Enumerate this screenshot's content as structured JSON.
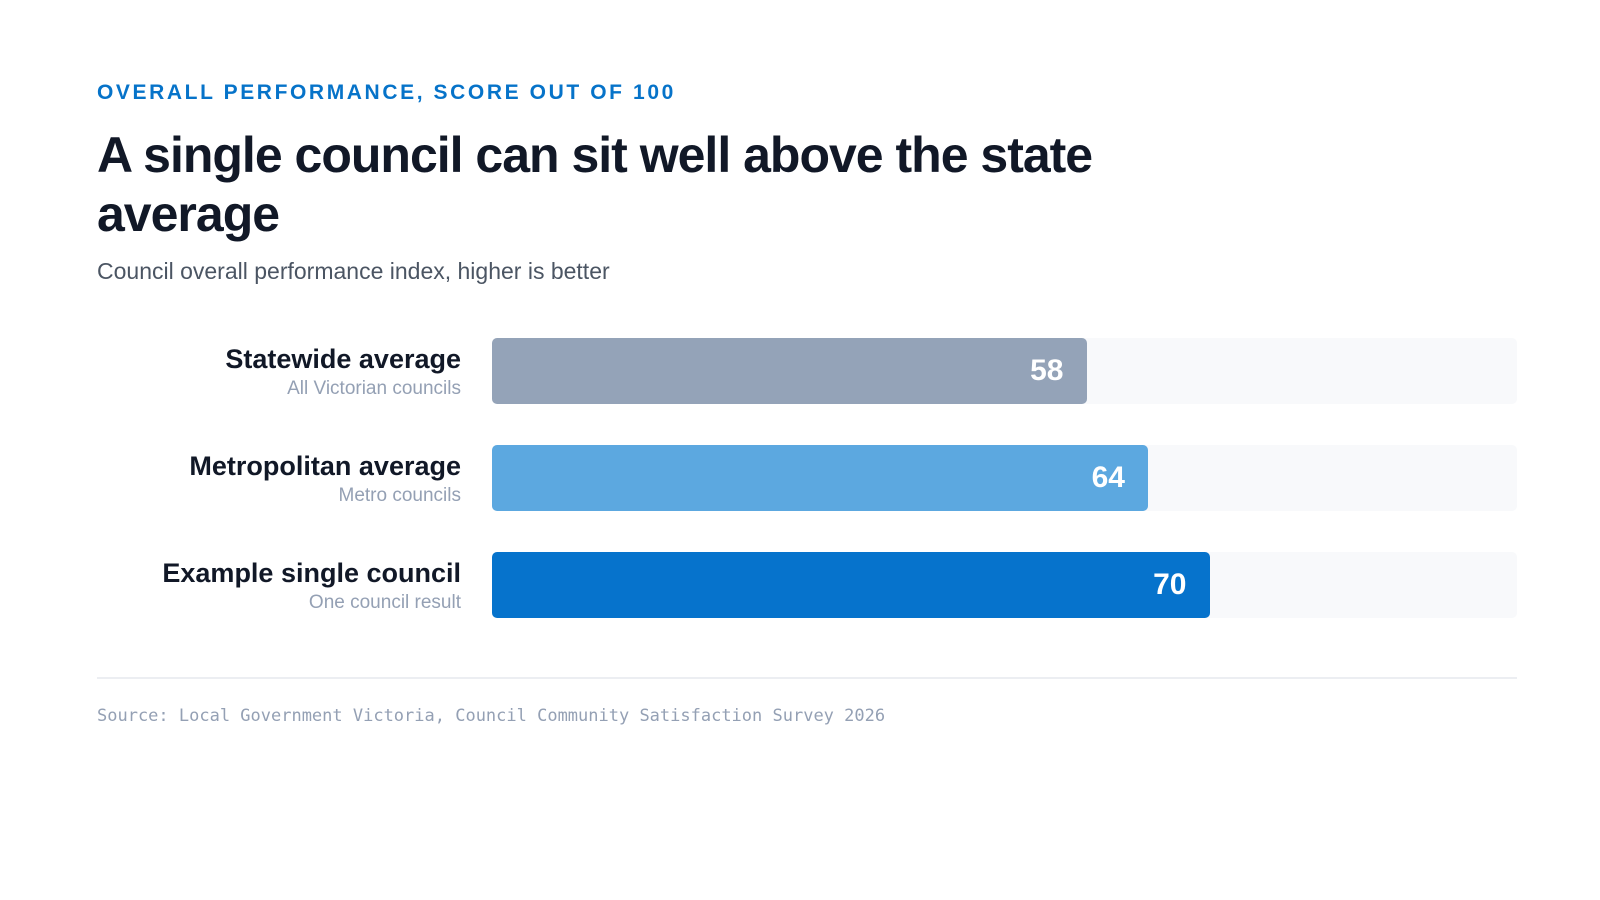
{
  "header": {
    "eyebrow": "OVERALL PERFORMANCE, SCORE OUT OF 100",
    "title": "A single council can sit well above the state average",
    "subtitle": "Council overall performance index, higher is better"
  },
  "rows": [
    {
      "name": "Statewide average",
      "description": "All Victorian councils",
      "value_label": "58",
      "color": "#94a3b8"
    },
    {
      "name": "Metropolitan average",
      "description": "Metro councils",
      "value_label": "64",
      "color": "#5ca8e0"
    },
    {
      "name": "Example single council",
      "description": "One council result",
      "value_label": "70",
      "color": "#0673cc"
    }
  ],
  "chart_data": {
    "type": "bar",
    "orientation": "horizontal",
    "title": "A single council can sit well above the state average",
    "subtitle": "Council overall performance index, higher is better",
    "categories": [
      "Statewide average",
      "Metropolitan average",
      "Example single council"
    ],
    "values": [
      58,
      64,
      70
    ],
    "xlim": [
      0,
      100
    ],
    "grid": false,
    "colors": [
      "#94a3b8",
      "#5ca8e0",
      "#0673cc"
    ]
  },
  "footer": {
    "source": "Source: Local Government Victoria, Council Community Satisfaction Survey 2026"
  }
}
